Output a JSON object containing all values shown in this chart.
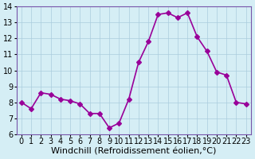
{
  "x": [
    0,
    1,
    2,
    3,
    4,
    5,
    6,
    7,
    8,
    9,
    10,
    11,
    12,
    13,
    14,
    15,
    16,
    17,
    18,
    19,
    20,
    21,
    22,
    23
  ],
  "y": [
    8.0,
    7.6,
    8.6,
    8.5,
    8.2,
    8.1,
    7.9,
    7.3,
    7.3,
    6.4,
    6.7,
    8.2,
    10.5,
    11.8,
    13.5,
    13.6,
    13.3,
    13.6,
    12.1,
    11.2,
    9.9,
    9.7,
    8.0,
    7.9
  ],
  "line_color": "#990099",
  "marker": "D",
  "marker_size": 3,
  "bg_color": "#d5eef5",
  "grid_color": "#aaccdd",
  "xlabel": "Windchill (Refroidissement éolien,°C)",
  "xlim": [
    -0.5,
    23.5
  ],
  "ylim": [
    6,
    14
  ],
  "yticks": [
    6,
    7,
    8,
    9,
    10,
    11,
    12,
    13,
    14
  ],
  "xticks": [
    0,
    1,
    2,
    3,
    4,
    5,
    6,
    7,
    8,
    9,
    10,
    11,
    12,
    13,
    14,
    15,
    16,
    17,
    18,
    19,
    20,
    21,
    22,
    23
  ],
  "tick_fontsize": 7,
  "xlabel_fontsize": 8,
  "spine_color": "#7755aa",
  "linewidth": 1.2
}
